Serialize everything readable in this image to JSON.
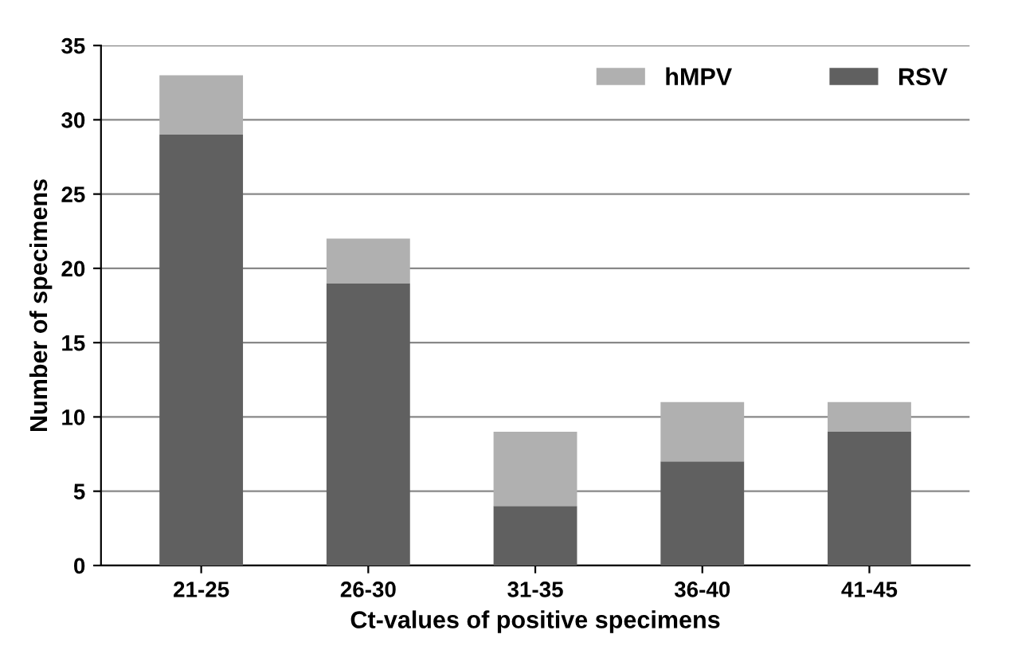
{
  "chart_data": {
    "type": "bar",
    "stacked": true,
    "xlabel": "Ct-values of positive specimens",
    "ylabel": "Number of specimens",
    "categories": [
      "21-25",
      "26-30",
      "31-35",
      "36-40",
      "41-45"
    ],
    "series": [
      {
        "name": "RSV",
        "color": "#606060",
        "values": [
          29,
          19,
          4,
          7,
          9
        ]
      },
      {
        "name": "hMPV",
        "color": "#b0b0b0",
        "values": [
          4,
          3,
          5,
          4,
          2
        ]
      }
    ],
    "ylim": [
      0,
      35
    ],
    "yticks": [
      0,
      5,
      10,
      15,
      20,
      25,
      30,
      35
    ],
    "grid": "y",
    "legend": "top right"
  }
}
